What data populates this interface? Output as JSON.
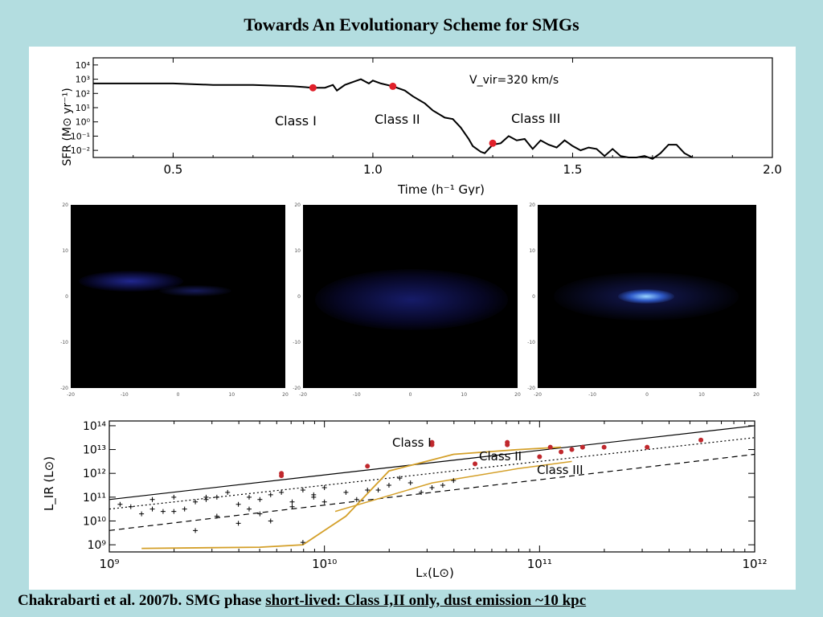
{
  "title": "Towards An Evolutionary Scheme for SMGs",
  "caption": {
    "plain": "Chakrabarti et al. 2007b.  SMG phase ",
    "underlined": "short-lived: Class I,II only, dust emission ~10 kpc"
  },
  "colors": {
    "background": "#b3dde0",
    "marker": "#e0202a",
    "track": "#d4a02a"
  },
  "chart_data": [
    {
      "type": "line",
      "ylabel": "SFR (M⊙ yr⁻¹)",
      "xlabel": "Time (h⁻¹ Gyr)",
      "x_ticks": [
        "0.5",
        "1.0",
        "1.5",
        "2.0"
      ],
      "y_ticks": [
        "10⁴",
        "10³",
        "10²",
        "10¹",
        "10⁰",
        "10⁻¹",
        "10⁻²"
      ],
      "xlim": [
        0.3,
        2.0
      ],
      "ylim": [
        -2.5,
        4.5
      ],
      "log_y": true,
      "annotation": "V_vir=320 km/s",
      "class_labels": [
        "Class I",
        "Class II",
        "Class III"
      ],
      "series": [
        {
          "x": [
            0.3,
            0.4,
            0.5,
            0.6,
            0.7,
            0.8,
            0.85,
            0.88,
            0.9,
            0.91,
            0.93,
            0.95,
            0.97,
            0.99,
            1.0,
            1.02,
            1.05,
            1.08,
            1.1,
            1.13,
            1.15,
            1.18,
            1.2,
            1.22,
            1.24,
            1.25,
            1.27,
            1.28,
            1.3,
            1.32,
            1.34,
            1.36,
            1.38,
            1.4,
            1.42,
            1.44,
            1.46,
            1.48,
            1.5,
            1.52,
            1.54,
            1.56,
            1.58,
            1.6,
            1.62,
            1.64,
            1.66,
            1.68,
            1.7,
            1.72,
            1.74,
            1.76,
            1.78,
            1.8
          ],
          "y": [
            2.7,
            2.7,
            2.7,
            2.6,
            2.6,
            2.5,
            2.4,
            2.4,
            2.6,
            2.2,
            2.6,
            2.8,
            3.0,
            2.7,
            2.9,
            2.7,
            2.5,
            2.2,
            1.8,
            1.3,
            0.8,
            0.3,
            0.2,
            -0.4,
            -1.2,
            -1.7,
            -2.1,
            -2.2,
            -1.6,
            -1.5,
            -1.0,
            -1.3,
            -1.2,
            -1.9,
            -1.3,
            -1.6,
            -1.8,
            -1.3,
            -1.7,
            -2.0,
            -1.8,
            -1.9,
            -2.4,
            -1.9,
            -2.4,
            -2.5,
            -2.5,
            -2.4,
            -2.6,
            -2.2,
            -1.6,
            -1.6,
            -2.2,
            -2.5
          ]
        }
      ],
      "markers": {
        "x": [
          0.85,
          1.05,
          1.3
        ],
        "y": [
          2.4,
          2.5,
          -1.5
        ]
      }
    },
    {
      "type": "scatter",
      "xlabel": "Lₓ(L⊙)",
      "ylabel": "L_IR (L⊙)",
      "log_x": true,
      "log_y": true,
      "xlim": [
        9,
        12
      ],
      "ylim": [
        8.7,
        14.2
      ],
      "x_ticks": [
        "10⁹",
        "10¹⁰",
        "10¹¹",
        "10¹²"
      ],
      "y_ticks": [
        "10⁹",
        "10¹⁰",
        "10¹¹",
        "10¹²",
        "10¹³",
        "10¹⁴"
      ],
      "class_labels": [
        "Class I",
        "Class II",
        "Class III"
      ],
      "lines": [
        {
          "style": "solid",
          "x": [
            9,
            12
          ],
          "y": [
            10.9,
            14.0
          ]
        },
        {
          "style": "dotted",
          "x": [
            9,
            12
          ],
          "y": [
            10.5,
            13.5
          ]
        },
        {
          "style": "dashed",
          "x": [
            9,
            12
          ],
          "y": [
            9.6,
            12.8
          ]
        }
      ],
      "track": {
        "x": [
          9.15,
          9.7,
          9.9,
          10.0,
          10.1,
          10.3,
          10.6,
          10.9,
          11.1
        ],
        "y": [
          8.85,
          8.9,
          9.0,
          9.6,
          10.2,
          12.1,
          12.8,
          13.0,
          13.1
        ]
      },
      "red_points": {
        "x": [
          9.8,
          9.8,
          10.2,
          10.5,
          10.5,
          10.7,
          10.85,
          10.85,
          11.0,
          11.05,
          11.1,
          11.15,
          11.2,
          11.3,
          11.5,
          11.75
        ],
        "y": [
          12.0,
          11.9,
          12.3,
          13.3,
          13.2,
          12.4,
          13.3,
          13.2,
          12.7,
          13.1,
          12.9,
          13.0,
          13.1,
          13.1,
          13.1,
          13.4
        ]
      },
      "black_points": {
        "x": [
          9.05,
          9.1,
          9.15,
          9.2,
          9.25,
          9.3,
          9.35,
          9.4,
          9.45,
          9.5,
          9.55,
          9.6,
          9.65,
          9.7,
          9.75,
          9.8,
          9.85,
          9.9,
          9.95,
          10.0,
          10.1,
          10.2,
          10.3,
          10.4,
          10.5,
          10.6,
          9.2,
          9.3,
          9.5,
          9.7,
          9.6,
          9.4,
          9.85,
          9.75,
          9.95,
          10.35,
          10.55,
          10.15,
          10.25,
          9.45,
          9.65,
          9.9,
          10.0,
          10.45
        ],
        "y": [
          10.7,
          10.6,
          10.3,
          10.9,
          10.4,
          11.0,
          10.5,
          10.8,
          10.9,
          11.0,
          11.2,
          10.7,
          11.0,
          10.9,
          11.1,
          11.2,
          10.8,
          11.3,
          11.0,
          11.4,
          11.2,
          11.3,
          11.5,
          11.6,
          11.4,
          11.7,
          10.5,
          10.4,
          10.2,
          10.3,
          9.9,
          9.6,
          10.6,
          10.0,
          11.1,
          11.8,
          11.5,
          10.9,
          11.3,
          11.0,
          10.5,
          9.1,
          10.8,
          11.2
        ]
      }
    }
  ]
}
